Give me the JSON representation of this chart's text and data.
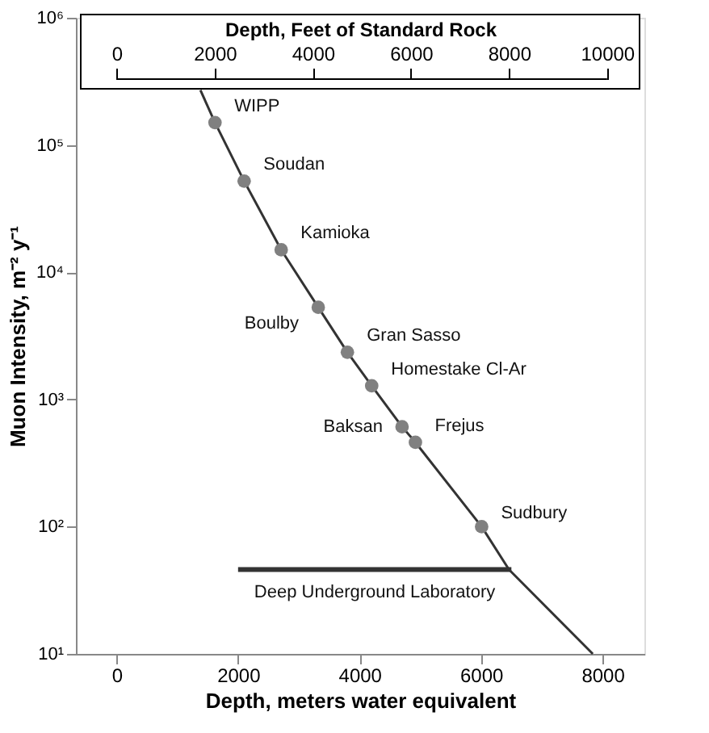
{
  "chart_data": {
    "type": "scatter",
    "xlabel": "Depth, meters water equivalent",
    "ylabel": "Muon Intensity, m⁻² y⁻¹",
    "x2label": "Depth, Feet of Standard Rock",
    "xlim": [
      -670,
      8690
    ],
    "xticks": [
      0,
      2000,
      4000,
      6000,
      8000
    ],
    "x2lim": [
      -830,
      10760
    ],
    "x2ticks": [
      0,
      2000,
      4000,
      6000,
      8000,
      10000
    ],
    "log": "y",
    "ylim": [
      10,
      1000000
    ],
    "yticks": [
      {
        "value": 10,
        "label": "10¹"
      },
      {
        "value": 100,
        "label": "10²"
      },
      {
        "value": 1000,
        "label": "10³"
      },
      {
        "value": 10000,
        "label": "10⁴"
      },
      {
        "value": 100000,
        "label": "10⁵"
      },
      {
        "value": 1000000,
        "label": "10⁶"
      }
    ],
    "grid": false,
    "series": [
      {
        "type": "line",
        "color": "#333333",
        "x": [
          1380,
          1620,
          2100,
          2710,
          3320,
          3800,
          4200,
          4700,
          4920,
          6010,
          6460,
          7840
        ],
        "values": [
          270000,
          150000,
          52000,
          15000,
          5300,
          2350,
          1280,
          610,
          460,
          100,
          46,
          10
        ]
      },
      {
        "type": "line",
        "name": "Deep Underground Laboratory",
        "color": "#333333",
        "x": [
          2000,
          6500
        ],
        "values": [
          46,
          46
        ]
      },
      {
        "color": "#808080",
        "marker": "circle",
        "x": [
          1620,
          2100,
          2710,
          3320,
          3800,
          4200,
          4700,
          4920,
          6010
        ],
        "values": [
          150000,
          52000,
          15000,
          5300,
          2350,
          1280,
          610,
          460,
          100
        ]
      }
    ],
    "annotations": [
      {
        "text": "WIPP",
        "x": 1620,
        "y": 150000
      },
      {
        "text": "Soudan",
        "x": 2100,
        "y": 52000
      },
      {
        "text": "Kamioka",
        "x": 2710,
        "y": 15000
      },
      {
        "text": "Boulby",
        "x": 3320,
        "y": 5300
      },
      {
        "text": "Gran Sasso",
        "x": 3800,
        "y": 2350
      },
      {
        "text": "Homestake Cl-Ar",
        "x": 4200,
        "y": 1280
      },
      {
        "text": "Baksan",
        "x": 4700,
        "y": 610
      },
      {
        "text": "Frejus",
        "x": 4920,
        "y": 460
      },
      {
        "text": "Sudbury",
        "x": 6010,
        "y": 100
      }
    ]
  }
}
